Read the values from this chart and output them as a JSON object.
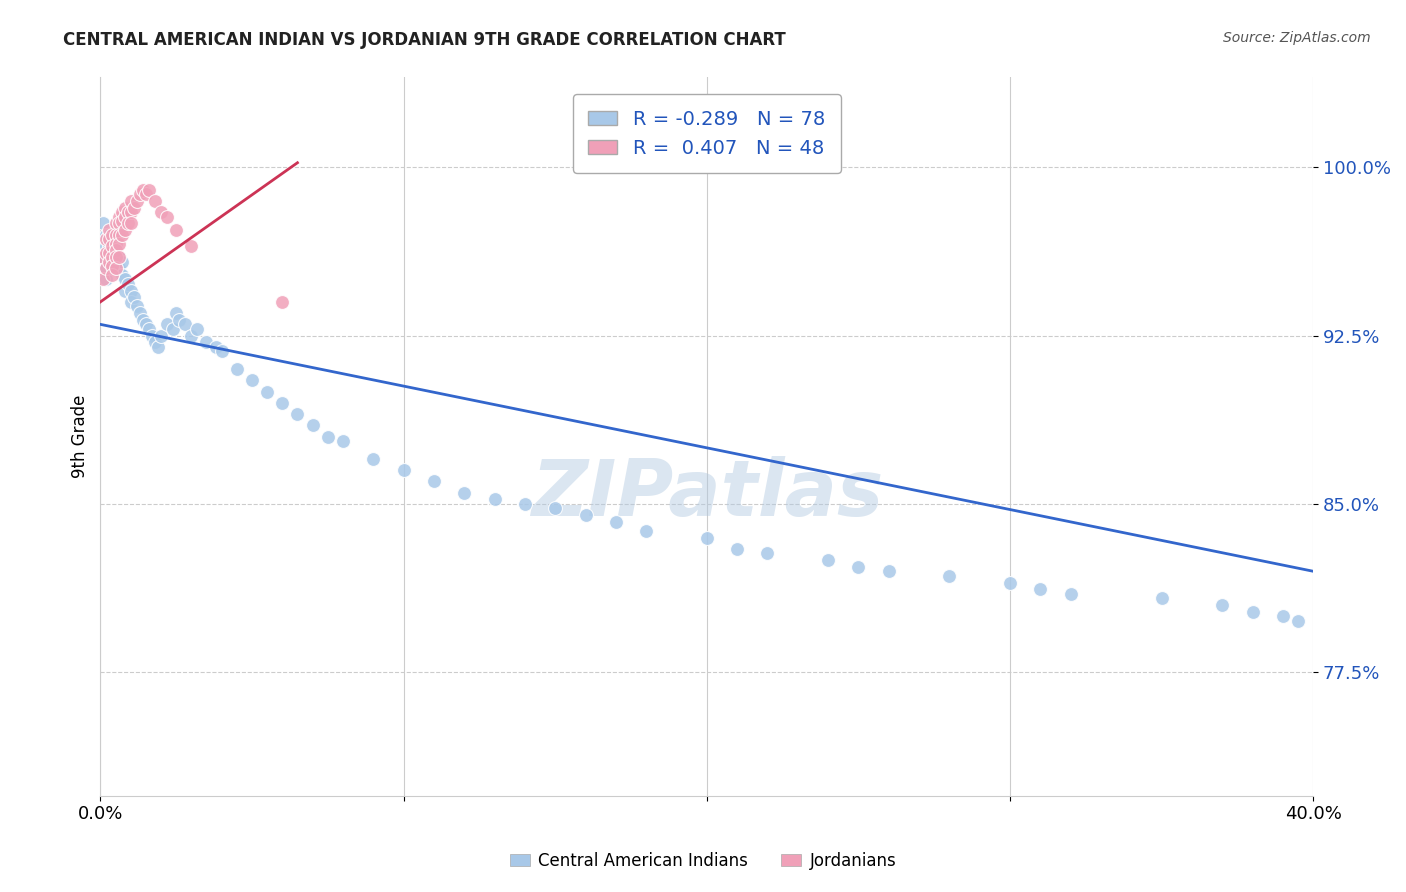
{
  "title": "CENTRAL AMERICAN INDIAN VS JORDANIAN 9TH GRADE CORRELATION CHART",
  "source": "Source: ZipAtlas.com",
  "ylabel": "9th Grade",
  "ytick_labels": [
    "77.5%",
    "85.0%",
    "92.5%",
    "100.0%"
  ],
  "ytick_values": [
    0.775,
    0.85,
    0.925,
    1.0
  ],
  "xlim": [
    0.0,
    0.4
  ],
  "ylim": [
    0.72,
    1.04
  ],
  "blue_R": -0.289,
  "blue_N": 78,
  "pink_R": 0.407,
  "pink_N": 48,
  "legend_label_blue": "Central American Indians",
  "legend_label_pink": "Jordanians",
  "blue_color": "#a8c8e8",
  "pink_color": "#f0a0b8",
  "blue_line_color": "#3366cc",
  "pink_line_color": "#cc3355",
  "blue_line_x0": 0.0,
  "blue_line_y0": 0.93,
  "blue_line_x1": 0.4,
  "blue_line_y1": 0.82,
  "pink_line_x0": 0.0,
  "pink_line_y0": 0.94,
  "pink_line_x1": 0.065,
  "pink_line_y1": 1.002,
  "blue_scatter_x": [
    0.001,
    0.001,
    0.002,
    0.002,
    0.002,
    0.002,
    0.003,
    0.003,
    0.003,
    0.003,
    0.004,
    0.004,
    0.004,
    0.005,
    0.005,
    0.005,
    0.006,
    0.006,
    0.007,
    0.007,
    0.008,
    0.008,
    0.009,
    0.01,
    0.01,
    0.011,
    0.012,
    0.013,
    0.014,
    0.015,
    0.016,
    0.017,
    0.018,
    0.019,
    0.02,
    0.022,
    0.024,
    0.025,
    0.026,
    0.028,
    0.03,
    0.032,
    0.035,
    0.038,
    0.04,
    0.045,
    0.05,
    0.055,
    0.06,
    0.065,
    0.07,
    0.075,
    0.08,
    0.09,
    0.1,
    0.11,
    0.12,
    0.13,
    0.14,
    0.15,
    0.16,
    0.17,
    0.18,
    0.2,
    0.21,
    0.22,
    0.24,
    0.25,
    0.26,
    0.28,
    0.3,
    0.31,
    0.32,
    0.35,
    0.37,
    0.38,
    0.39,
    0.395
  ],
  "blue_scatter_y": [
    0.975,
    0.96,
    0.97,
    0.965,
    0.955,
    0.95,
    0.97,
    0.965,
    0.96,
    0.958,
    0.968,
    0.96,
    0.955,
    0.965,
    0.96,
    0.955,
    0.96,
    0.955,
    0.958,
    0.952,
    0.95,
    0.945,
    0.948,
    0.945,
    0.94,
    0.942,
    0.938,
    0.935,
    0.932,
    0.93,
    0.928,
    0.925,
    0.922,
    0.92,
    0.925,
    0.93,
    0.928,
    0.935,
    0.932,
    0.93,
    0.925,
    0.928,
    0.922,
    0.92,
    0.918,
    0.91,
    0.905,
    0.9,
    0.895,
    0.89,
    0.885,
    0.88,
    0.878,
    0.87,
    0.865,
    0.86,
    0.855,
    0.852,
    0.85,
    0.848,
    0.845,
    0.842,
    0.838,
    0.835,
    0.83,
    0.828,
    0.825,
    0.822,
    0.82,
    0.818,
    0.815,
    0.812,
    0.81,
    0.808,
    0.805,
    0.802,
    0.8,
    0.798
  ],
  "pink_scatter_x": [
    0.001,
    0.001,
    0.002,
    0.002,
    0.002,
    0.003,
    0.003,
    0.003,
    0.003,
    0.004,
    0.004,
    0.004,
    0.004,
    0.004,
    0.005,
    0.005,
    0.005,
    0.005,
    0.005,
    0.005,
    0.006,
    0.006,
    0.006,
    0.006,
    0.006,
    0.007,
    0.007,
    0.007,
    0.008,
    0.008,
    0.008,
    0.009,
    0.009,
    0.01,
    0.01,
    0.01,
    0.011,
    0.012,
    0.013,
    0.014,
    0.015,
    0.016,
    0.018,
    0.02,
    0.022,
    0.025,
    0.03,
    0.06
  ],
  "pink_scatter_y": [
    0.96,
    0.95,
    0.968,
    0.962,
    0.955,
    0.972,
    0.968,
    0.962,
    0.958,
    0.97,
    0.965,
    0.96,
    0.956,
    0.952,
    0.975,
    0.97,
    0.966,
    0.963,
    0.96,
    0.955,
    0.978,
    0.975,
    0.97,
    0.966,
    0.96,
    0.98,
    0.976,
    0.97,
    0.982,
    0.978,
    0.972,
    0.98,
    0.975,
    0.985,
    0.98,
    0.975,
    0.982,
    0.985,
    0.988,
    0.99,
    0.988,
    0.99,
    0.985,
    0.98,
    0.978,
    0.972,
    0.965,
    0.94
  ],
  "watermark": "ZIPatlas",
  "background_color": "#ffffff",
  "grid_color": "#cccccc"
}
